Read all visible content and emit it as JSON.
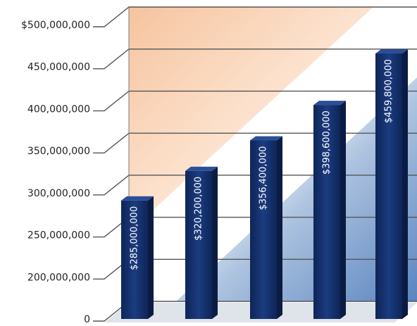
{
  "chart_data": {
    "type": "bar",
    "values": [
      285000000,
      320200000,
      356400000,
      398600000,
      459800000
    ],
    "value_labels": [
      "$285,000,000",
      "$320,200,000",
      "$356,400,000",
      "$398,600,000",
      "$459,800,000"
    ],
    "color": "#14306b",
    "ylim": [
      0,
      500000000
    ],
    "yticks": [
      0,
      {
        "value": 200000000,
        "label": "200,000,000"
      },
      {
        "value": 250000000,
        "label": "250,000,000"
      },
      {
        "value": 300000000,
        "label": "300,000,000"
      },
      {
        "value": 350000000,
        "label": "350,000,000"
      },
      {
        "value": 400000000,
        "label": "400,000,000"
      },
      {
        "value": 450000000,
        "label": "450,000,000"
      },
      {
        "value": 500000000,
        "label": "$500,000,000"
      }
    ],
    "grid": true
  }
}
